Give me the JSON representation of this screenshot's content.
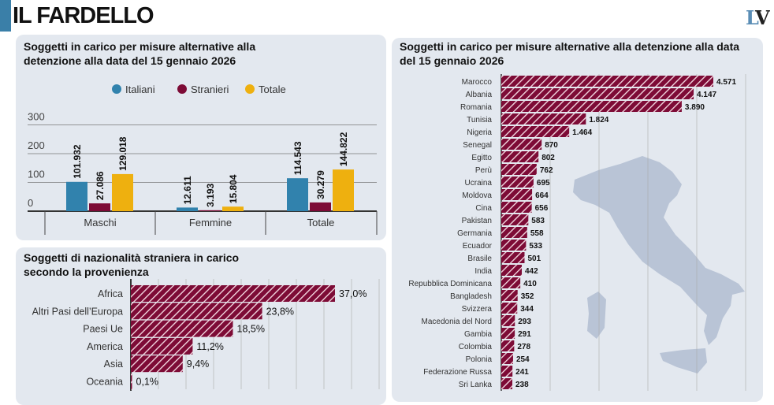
{
  "header": {
    "title": "IL FARDELLO",
    "logo": "LV"
  },
  "colors": {
    "italiani": "#3182ad",
    "stranieri": "#7d0b36",
    "totale": "#eeb00f",
    "bar": "#7d0b36",
    "panel": "#e3e8ef",
    "map": "#b9c4d6"
  },
  "chart_data": [
    {
      "type": "bar",
      "title": "Soggetti in carico per misure alternative alla detenzione alla data del 15 gennaio 2026",
      "categories": [
        "Maschi",
        "Femmine",
        "Totale"
      ],
      "series": [
        {
          "name": "Italiani",
          "values": [
            101.932,
            12.611,
            114.543
          ],
          "labels": [
            "101.932",
            "12.611",
            "114.543"
          ]
        },
        {
          "name": "Stranieri",
          "values": [
            27.086,
            3.193,
            30.279
          ],
          "labels": [
            "27.086",
            "3.193",
            "30.279"
          ]
        },
        {
          "name": "Totale",
          "values": [
            129.018,
            15.804,
            144.822
          ],
          "labels": [
            "129.018",
            "15.804",
            "144.822"
          ]
        }
      ],
      "yticks": [
        "0",
        "100",
        "200",
        "300"
      ],
      "ylim": [
        0,
        300
      ],
      "legend": "top",
      "grid": true
    },
    {
      "type": "bar",
      "orientation": "horizontal",
      "title": "Soggetti di nazionalità straniera in carico secondo la provenienza",
      "categories": [
        "Africa",
        "Altri Pasi dell’Europa",
        "Paesi Ue",
        "America",
        "Asia",
        "Oceania"
      ],
      "values": [
        37.0,
        23.8,
        18.5,
        11.2,
        9.4,
        0.1
      ],
      "labels": [
        "37,0%",
        "23,8%",
        "18,5%",
        "11,2%",
        "9,4%",
        "0,1%"
      ],
      "grid": true
    },
    {
      "type": "bar",
      "orientation": "horizontal",
      "title": "Soggetti in carico per misure alternative alla detenzione alla data del 15 gennaio 2026",
      "categories": [
        "Marocco",
        "Albania",
        "Romania",
        "Tunisia",
        "Nigeria",
        "Senegal",
        "Egitto",
        "Perù",
        "Ucraina",
        "Moldova",
        "Cina",
        "Pakistan",
        "Germania",
        "Ecuador",
        "Brasile",
        "India",
        "Repubblica Dominicana",
        "Bangladesh",
        "Svizzera",
        "Macedonia del Nord",
        "Gambia",
        "Colombia",
        "Polonia",
        "Federazione Russa",
        "Sri Lanka"
      ],
      "values": [
        4571,
        4147,
        3890,
        1824,
        1464,
        870,
        802,
        762,
        695,
        664,
        656,
        583,
        558,
        533,
        501,
        442,
        410,
        352,
        344,
        293,
        291,
        278,
        254,
        241,
        238
      ],
      "labels": [
        "4.571",
        "4.147",
        "3.890",
        "1.824",
        "1.464",
        "870",
        "802",
        "762",
        "695",
        "664",
        "656",
        "583",
        "558",
        "533",
        "501",
        "442",
        "410",
        "352",
        "344",
        "293",
        "291",
        "278",
        "254",
        "241",
        "238"
      ],
      "grid": true
    }
  ]
}
